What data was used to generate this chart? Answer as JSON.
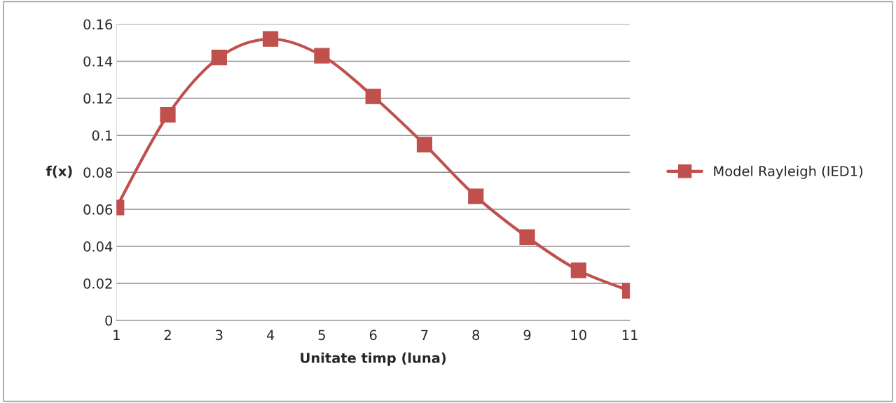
{
  "chart_data": {
    "type": "line",
    "xlabel": "Unitate timp (luna)",
    "ylabel": "f(x)",
    "categories": [
      "1",
      "2",
      "3",
      "4",
      "5",
      "6",
      "7",
      "8",
      "9",
      "10",
      "11"
    ],
    "series": [
      {
        "name": "Model Rayleigh (IED1)",
        "color": "#c0504d",
        "values": [
          0.061,
          0.111,
          0.142,
          0.152,
          0.143,
          0.121,
          0.095,
          0.067,
          0.045,
          0.027,
          0.016
        ]
      }
    ],
    "ylim": [
      0,
      0.16
    ],
    "yticks": [
      {
        "value": 0,
        "label": "0"
      },
      0.02,
      0.04,
      0.06,
      0.08,
      {
        "value": 0.1,
        "label": "0.1"
      },
      0.12,
      0.14,
      0.16
    ],
    "grid": "y",
    "legend": "right",
    "marker": "square",
    "line_style": "solid"
  }
}
